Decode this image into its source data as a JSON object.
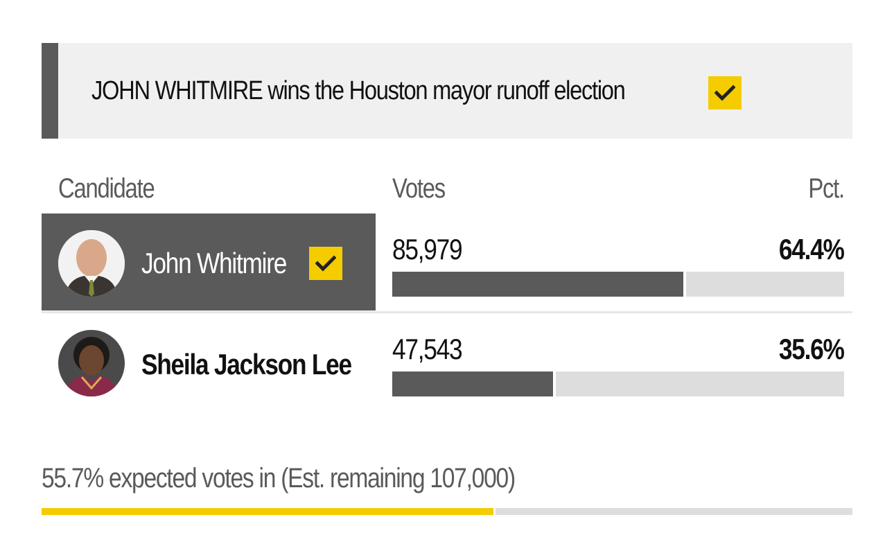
{
  "banner": {
    "title": "JOHN WHITMIRE wins the Houston mayor runoff election",
    "check_icon": "checkmark-icon",
    "check_color": "#f5cc00"
  },
  "columns": {
    "candidate": "Candidate",
    "votes": "Votes",
    "pct": "Pct."
  },
  "candidates": [
    {
      "name": "John Whitmire",
      "votes": "85,979",
      "pct": "64.4%",
      "share": 0.644,
      "winner": true,
      "avatar_icon": "candidate-photo"
    },
    {
      "name": "Sheila Jackson Lee",
      "votes": "47,543",
      "pct": "35.6%",
      "share": 0.356,
      "winner": false,
      "avatar_icon": "candidate-photo"
    }
  ],
  "footer": {
    "text": "55.7% expected votes in (Est. remaining 107,000)",
    "progress": 0.557
  },
  "colors": {
    "accent": "#f5cc00",
    "bar": "#5a5a5a",
    "track": "#dddddd"
  }
}
